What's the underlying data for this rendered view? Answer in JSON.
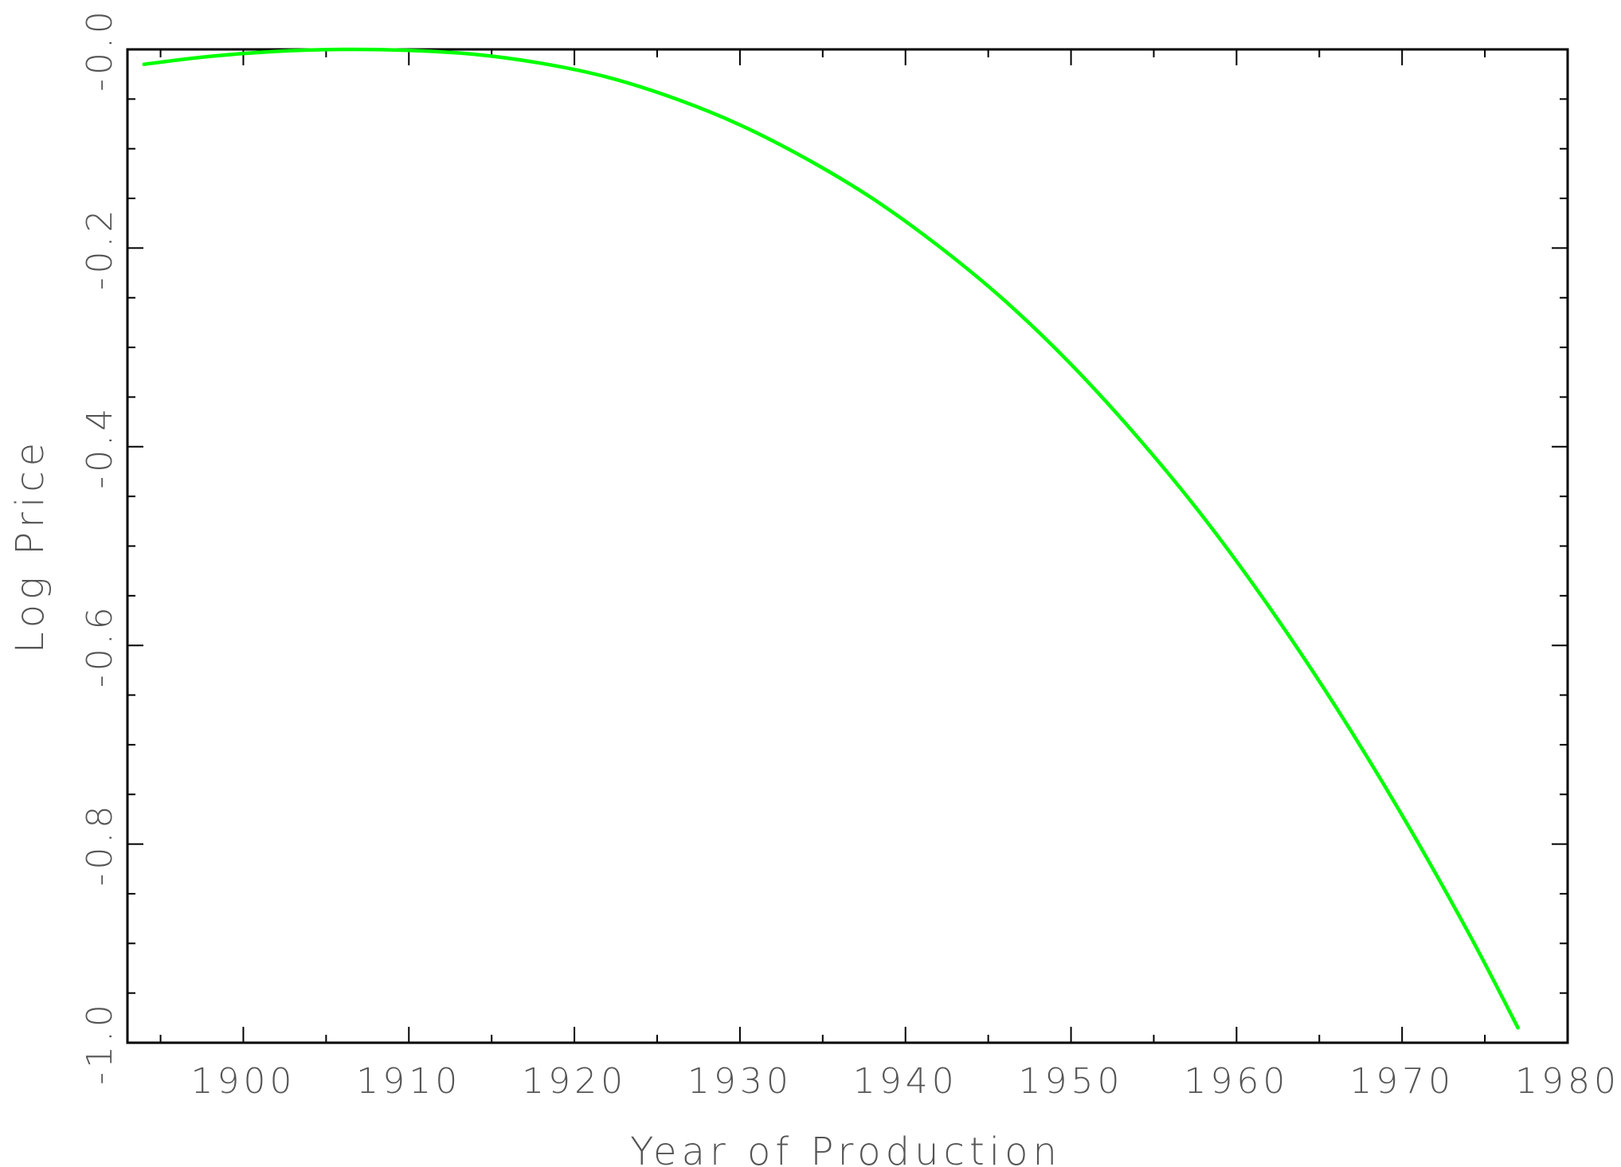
{
  "chart_data": {
    "type": "line",
    "title": "",
    "xlabel": "Year of Production",
    "ylabel": "Log Price",
    "xlim": [
      1893,
      1980
    ],
    "ylim": [
      -1.0,
      0.0
    ],
    "grid": false,
    "legend": "none",
    "x_ticks": [
      1900,
      1910,
      1920,
      1930,
      1940,
      1950,
      1960,
      1970,
      1980
    ],
    "x_tick_labels": [
      "1900",
      "1910",
      "1920",
      "1930",
      "1940",
      "1950",
      "1960",
      "1970",
      "1980"
    ],
    "y_ticks": [
      -1.0,
      -0.8,
      -0.6,
      -0.4,
      -0.2,
      0.0
    ],
    "y_tick_labels": [
      "-1.0",
      "-0.8",
      "-0.6",
      "-0.4",
      "-0.2",
      "-0.0"
    ],
    "series": [
      {
        "color": "#00ff00",
        "x": [
          1894,
          1898,
          1902,
          1906,
          1910,
          1914,
          1918,
          1922,
          1926,
          1930,
          1934,
          1938,
          1942,
          1946,
          1950,
          1954,
          1958,
          1962,
          1966,
          1970,
          1974,
          1977
        ],
        "y": [
          -0.015,
          -0.007,
          -0.002,
          0.0,
          -0.001,
          -0.005,
          -0.014,
          -0.028,
          -0.049,
          -0.076,
          -0.11,
          -0.15,
          -0.198,
          -0.253,
          -0.317,
          -0.39,
          -0.471,
          -0.562,
          -0.662,
          -0.771,
          -0.889,
          -0.985
        ]
      }
    ]
  }
}
